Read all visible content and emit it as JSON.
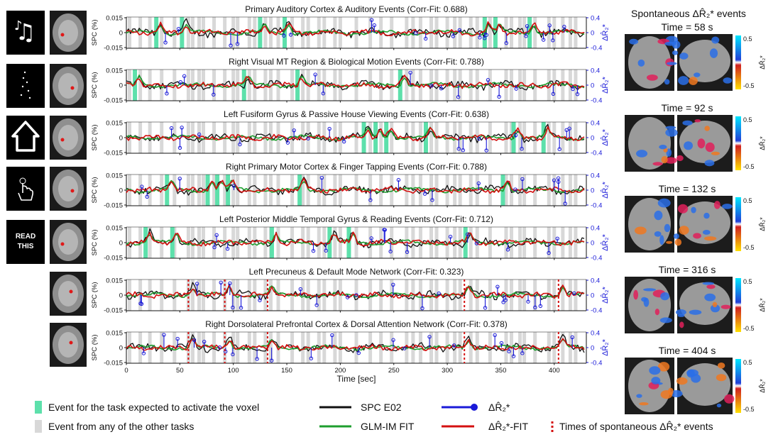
{
  "chart_data": {
    "type": "line",
    "xlabel": "Time [sec]",
    "xlim": [
      0,
      430
    ],
    "xticks": [
      "0",
      "50",
      "100",
      "150",
      "200",
      "250",
      "300",
      "350",
      "400"
    ],
    "left_ylabel": "SPC (%)",
    "left_yticks": [
      "0.015",
      "0",
      "-0.015"
    ],
    "right_ylabel": "ΔR̂₂*",
    "right_yticks": [
      "0.4",
      "0",
      "-0.4"
    ],
    "ylim_left": [
      -0.015,
      0.015
    ],
    "ylim_right": [
      -0.4,
      0.4
    ],
    "colors": {
      "spc": "#111111",
      "glm": "#1e9e2e",
      "dr2": "#1a1ad8",
      "dr2fit": "#d41010",
      "task_event": "#5de0ab",
      "other_event": "#d8d8d8",
      "spont": "#d41010"
    },
    "panels": [
      {
        "title": "Primary Auditory Cortex & Auditory Events (Corr-Fit: 0.688)",
        "icon": "music-notes-icon",
        "events": [
          28,
          52,
          125,
          148,
          335,
          345,
          377
        ]
      },
      {
        "title": "Right Visual MT Region & Biological Motion Events (Corr-Fit: 0.788)",
        "icon": "point-light-walker-icon",
        "events": [
          8,
          110,
          160,
          256
        ]
      },
      {
        "title": "Left Fusiform Gyrus & Passive House Viewing Events (Corr-Fit: 0.638)",
        "icon": "house-icon",
        "events": [
          222,
          233,
          243,
          280,
          362,
          390
        ]
      },
      {
        "title": "Right Primary Motor Cortex & Finger Tapping Events (Corr-Fit: 0.788)",
        "icon": "finger-tap-icon",
        "events": [
          38,
          76,
          85,
          95,
          162,
          352
        ]
      },
      {
        "title": "Left Posterior Middle Temporal Gyrus & Reading Events (Corr-Fit: 0.712)",
        "icon_text": "READ\nTHIS",
        "events": [
          18,
          43,
          136,
          190,
          208,
          317
        ]
      },
      {
        "title": "Left Precuneus & Default Mode Network (Corr-Fit: 0.323)",
        "spont": [
          58,
          92,
          132,
          316,
          404
        ]
      },
      {
        "title": "Right Dorsolateral Prefrontal Cortex & Dorsal Attention Network (Corr-Fit: 0.378)",
        "spont": [
          58,
          92,
          132,
          316,
          404
        ]
      }
    ],
    "other_events": [
      3,
      13,
      22,
      33,
      45,
      58,
      62,
      68,
      72,
      82,
      92,
      100,
      104,
      115,
      120,
      130,
      135,
      142,
      155,
      165,
      170,
      180,
      185,
      195,
      200,
      215,
      228,
      238,
      248,
      262,
      268,
      275,
      285,
      290,
      300,
      307,
      312,
      322,
      328,
      340,
      355,
      360,
      368,
      372,
      382,
      395,
      400,
      408,
      415,
      420
    ],
    "legend": [
      {
        "key": "task",
        "label": "Event for the task expected to activate the voxel"
      },
      {
        "key": "other",
        "label": "Event from any of the other tasks"
      },
      {
        "key": "spc",
        "label": "SPC E02"
      },
      {
        "key": "glm",
        "label": "GLM-IM FIT"
      },
      {
        "key": "dr2",
        "label": "ΔR̂₂*"
      },
      {
        "key": "dr2fit",
        "label": "ΔR̂₂*-FIT"
      },
      {
        "key": "spont",
        "label": "Times of spontaneous ΔR̂₂* events"
      }
    ],
    "spontaneous": {
      "title": "Spontaneous ΔR̂₂* events",
      "times": [
        "Time = 58 s",
        "Time = 92 s",
        "Time = 132 s",
        "Time = 316 s",
        "Time = 404 s"
      ],
      "colorbar_ticks": [
        "0.5",
        "-0.5"
      ],
      "colorbar_label": "ΔR̂₂*"
    }
  }
}
